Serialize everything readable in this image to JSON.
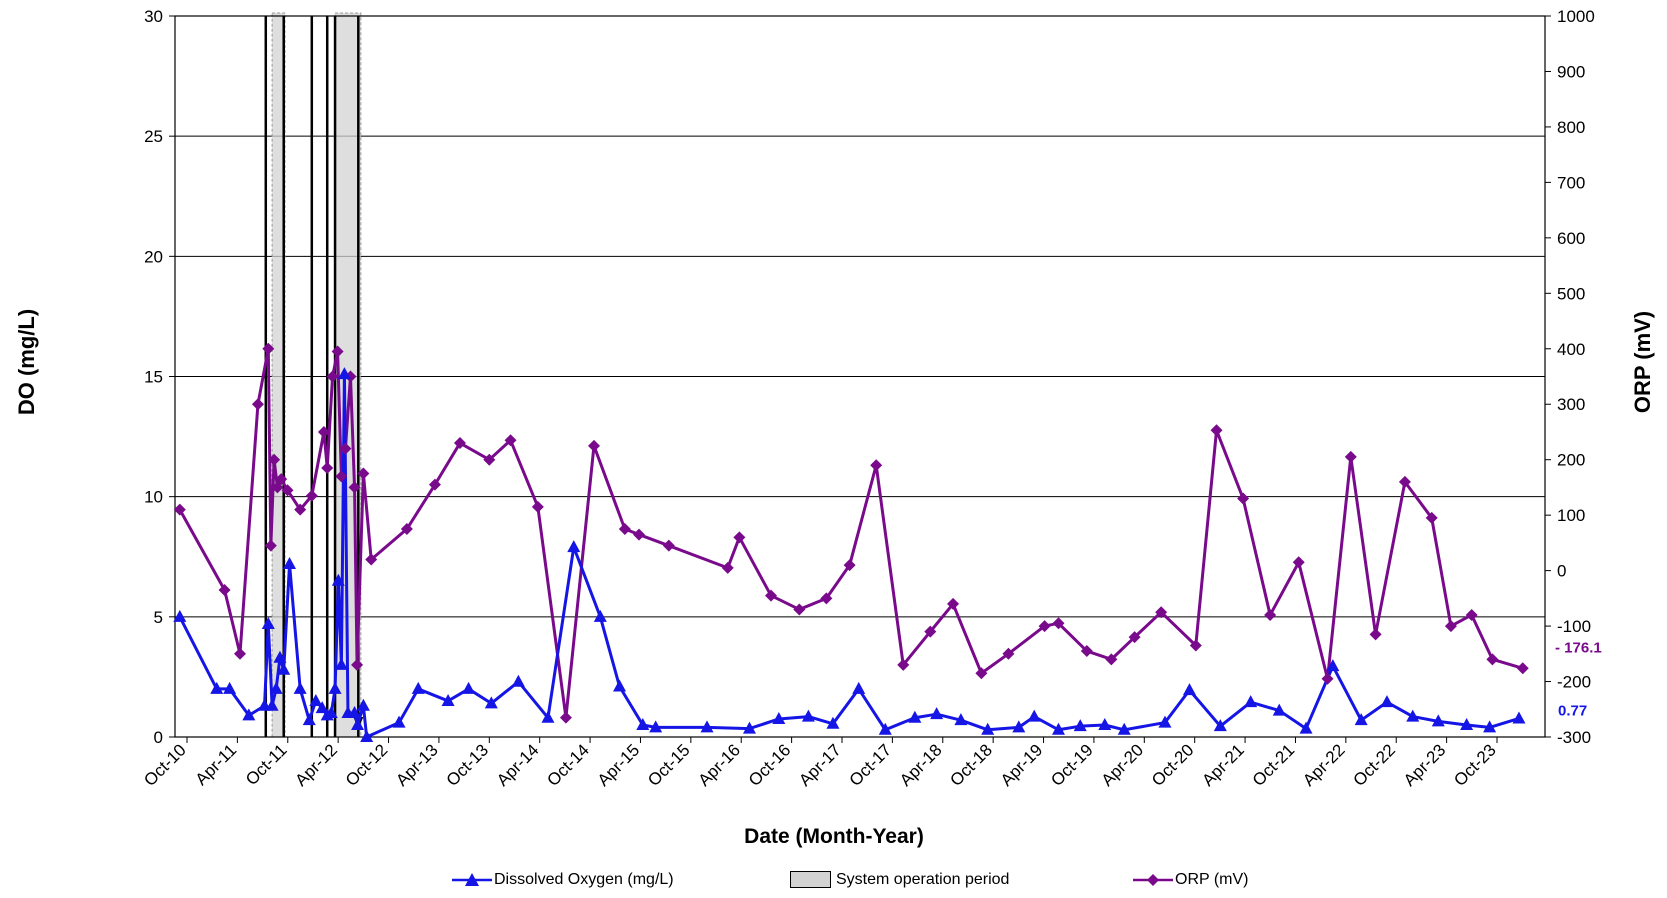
{
  "chart_data": {
    "type": "line",
    "xlabel": "Date (Month-Year)",
    "ylabel_left": "DO (mg/L)",
    "ylabel_right": "ORP (mV)",
    "ylim_left": [
      0,
      30
    ],
    "ylim_right": [
      -300,
      1000
    ],
    "yticks_left": [
      "0",
      "5",
      "10",
      "15",
      "20",
      "25",
      "30"
    ],
    "yticks_right": [
      "-300",
      "-200",
      "-100",
      "0",
      "100",
      "200",
      "300",
      "400",
      "500",
      "600",
      "700",
      "800",
      "900",
      "1000"
    ],
    "xticks": [
      "Oct-10",
      "Apr-11",
      "Oct-11",
      "Apr-12",
      "Oct-12",
      "Apr-13",
      "Oct-13",
      "Apr-14",
      "Oct-14",
      "Apr-15",
      "Oct-15",
      "Apr-16",
      "Oct-16",
      "Apr-17",
      "Oct-17",
      "Apr-18",
      "Oct-18",
      "Apr-19",
      "Oct-19",
      "Apr-20",
      "Oct-20",
      "Apr-21",
      "Oct-21",
      "Apr-22",
      "Oct-22",
      "Apr-23",
      "Oct-23"
    ],
    "grid": "horizontal",
    "legend_position": "bottom",
    "series": [
      {
        "name": "Dissolved Oxygen (mg/L)",
        "axis": "left",
        "color": "#1515e6",
        "marker": "triangle",
        "points": [
          [
            "2010-10-20",
            5.0
          ],
          [
            "2011-03-15",
            2.0
          ],
          [
            "2011-05-05",
            2.0
          ],
          [
            "2011-07-20",
            0.9
          ],
          [
            "2011-09-20",
            1.3
          ],
          [
            "2011-10-05",
            4.7
          ],
          [
            "2011-10-20",
            1.3
          ],
          [
            "2011-11-05",
            2.0
          ],
          [
            "2011-11-20",
            3.3
          ],
          [
            "2011-12-05",
            2.8
          ],
          [
            "2011-12-28",
            7.2
          ],
          [
            "2012-02-08",
            2.0
          ],
          [
            "2012-03-15",
            0.7
          ],
          [
            "2012-04-10",
            1.5
          ],
          [
            "2012-05-05",
            1.2
          ],
          [
            "2012-05-25",
            0.9
          ],
          [
            "2012-06-10",
            1.0
          ],
          [
            "2012-06-25",
            2.0
          ],
          [
            "2012-07-08",
            6.5
          ],
          [
            "2012-07-20",
            3.0
          ],
          [
            "2012-08-01",
            15.1
          ],
          [
            "2012-08-15",
            1.0
          ],
          [
            "2012-09-10",
            1.0
          ],
          [
            "2012-09-22",
            0.5
          ],
          [
            "2012-10-15",
            1.3
          ],
          [
            "2012-10-28",
            0.0
          ],
          [
            "2013-03-05",
            0.6
          ],
          [
            "2013-05-20",
            2.0
          ],
          [
            "2013-09-15",
            1.5
          ],
          [
            "2013-12-05",
            2.0
          ],
          [
            "2014-03-05",
            1.4
          ],
          [
            "2014-06-20",
            2.3
          ],
          [
            "2014-10-15",
            0.8
          ],
          [
            "2015-01-25",
            7.9
          ],
          [
            "2015-05-10",
            5.0
          ],
          [
            "2015-07-25",
            2.1
          ],
          [
            "2015-10-25",
            0.5
          ],
          [
            "2015-12-15",
            0.4
          ],
          [
            "2016-07-05",
            0.4
          ],
          [
            "2016-12-20",
            0.35
          ],
          [
            "2017-04-15",
            0.75
          ],
          [
            "2017-08-10",
            0.85
          ],
          [
            "2017-11-15",
            0.55
          ],
          [
            "2018-02-25",
            2.0
          ],
          [
            "2018-06-10",
            0.3
          ],
          [
            "2018-10-05",
            0.8
          ],
          [
            "2018-12-30",
            0.95
          ],
          [
            "2019-04-05",
            0.7
          ],
          [
            "2019-07-20",
            0.3
          ],
          [
            "2019-11-20",
            0.4
          ],
          [
            "2020-01-20",
            0.85
          ],
          [
            "2020-04-25",
            0.3
          ],
          [
            "2020-07-20",
            0.45
          ],
          [
            "2020-10-25",
            0.5
          ],
          [
            "2021-01-10",
            0.3
          ],
          [
            "2021-06-20",
            0.6
          ],
          [
            "2021-09-25",
            1.95
          ],
          [
            "2022-01-25",
            0.45
          ],
          [
            "2022-05-25",
            1.45
          ],
          [
            "2022-09-15",
            1.1
          ],
          [
            "2022-12-30",
            0.35
          ],
          [
            "2023-04-15",
            2.95
          ],
          [
            "2023-08-05",
            0.7
          ],
          [
            "2023-11-15",
            1.45
          ],
          [
            "2024-02-25",
            0.85
          ],
          [
            "2024-06-05",
            0.65
          ],
          [
            "2024-09-25",
            0.5
          ],
          [
            "2024-12-25",
            0.4
          ],
          [
            "2025-04-20",
            0.77
          ]
        ]
      },
      {
        "name": "System operation period",
        "type": "band",
        "color": "#d3d3d3",
        "periods": [
          [
            "2011-10-20",
            "2011-12-10"
          ],
          [
            "2012-06-25",
            "2012-10-05"
          ]
        ]
      },
      {
        "name": "ORP (mV)",
        "axis": "right",
        "color": "#7a0a8c",
        "marker": "diamond",
        "points": [
          [
            "2010-10-20",
            110
          ],
          [
            "2011-04-15",
            -35
          ],
          [
            "2011-06-15",
            -150
          ],
          [
            "2011-08-25",
            300
          ],
          [
            "2011-10-05",
            400
          ],
          [
            "2011-10-15",
            45
          ],
          [
            "2011-10-28",
            200
          ],
          [
            "2011-11-10",
            150
          ],
          [
            "2011-11-25",
            165
          ],
          [
            "2011-12-20",
            145
          ],
          [
            "2012-02-08",
            110
          ],
          [
            "2012-03-25",
            135
          ],
          [
            "2012-05-12",
            250
          ],
          [
            "2012-05-25",
            185
          ],
          [
            "2012-06-15",
            350
          ],
          [
            "2012-07-05",
            395
          ],
          [
            "2012-07-20",
            170
          ],
          [
            "2012-08-05",
            220
          ],
          [
            "2012-08-25",
            350
          ],
          [
            "2012-09-10",
            150
          ],
          [
            "2012-09-20",
            -170
          ],
          [
            "2012-10-15",
            175
          ],
          [
            "2012-11-15",
            20
          ],
          [
            "2013-04-05",
            75
          ],
          [
            "2013-07-25",
            155
          ],
          [
            "2013-11-01",
            230
          ],
          [
            "2014-02-25",
            200
          ],
          [
            "2014-05-20",
            235
          ],
          [
            "2014-09-05",
            115
          ],
          [
            "2014-12-25",
            -265
          ],
          [
            "2015-04-15",
            225
          ],
          [
            "2015-08-15",
            75
          ],
          [
            "2015-10-10",
            65
          ],
          [
            "2016-02-05",
            45
          ],
          [
            "2016-09-25",
            5
          ],
          [
            "2016-11-10",
            60
          ],
          [
            "2017-03-15",
            -45
          ],
          [
            "2017-07-05",
            -70
          ],
          [
            "2017-10-20",
            -50
          ],
          [
            "2018-01-20",
            10
          ],
          [
            "2018-05-05",
            190
          ],
          [
            "2018-08-20",
            -170
          ],
          [
            "2018-12-05",
            -110
          ],
          [
            "2019-03-05",
            -60
          ],
          [
            "2019-06-25",
            -185
          ],
          [
            "2019-10-10",
            -150
          ],
          [
            "2020-03-01",
            -100
          ],
          [
            "2020-04-25",
            -95
          ],
          [
            "2020-08-15",
            -145
          ],
          [
            "2020-11-20",
            -160
          ],
          [
            "2021-02-20",
            -120
          ],
          [
            "2021-06-05",
            -75
          ],
          [
            "2021-10-20",
            -135
          ],
          [
            "2022-01-10",
            253
          ],
          [
            "2022-04-25",
            130
          ],
          [
            "2022-08-10",
            -80
          ],
          [
            "2022-12-01",
            15
          ],
          [
            "2023-03-25",
            -195
          ],
          [
            "2023-06-25",
            205
          ],
          [
            "2023-10-01",
            -115
          ],
          [
            "2024-01-25",
            160
          ],
          [
            "2024-05-10",
            95
          ],
          [
            "2024-07-25",
            -100
          ],
          [
            "2024-10-15",
            -80
          ],
          [
            "2025-01-05",
            -160
          ],
          [
            "2025-05-05",
            -176.1
          ]
        ]
      }
    ],
    "annotations": [
      {
        "text": "0.77",
        "color": "#1515e6"
      },
      {
        "text": "- 176.1",
        "color": "#7a0a8c"
      }
    ],
    "event_lines": [
      "2011-09-25",
      "2011-12-05",
      "2012-03-25",
      "2012-05-25",
      "2012-06-25",
      "2012-09-25"
    ],
    "event_arrows": [
      "2012-09-25"
    ]
  }
}
